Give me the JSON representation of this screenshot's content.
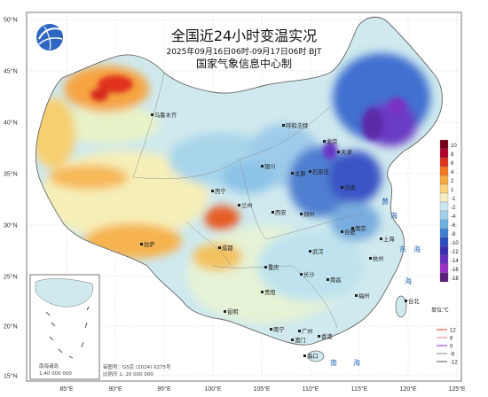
{
  "title": "全国近24小时变温实况",
  "period": "2025年09月16日06时-09月17日06时 BJT",
  "org": "国家气象信息中心制",
  "lat_labels": [
    "50°N",
    "45°N",
    "40°N",
    "35°N",
    "30°N",
    "25°N",
    "20°N",
    "15°N"
  ],
  "lon_labels": [
    "85°E",
    "90°E",
    "95°E",
    "100°E",
    "105°E",
    "110°E",
    "115°E",
    "120°E",
    "125°E"
  ],
  "cities": [
    {
      "name": "乌鲁木齐",
      "color": "#222"
    },
    {
      "name": "呼和浩特",
      "color": "#222"
    },
    {
      "name": "北京",
      "color": "#222"
    },
    {
      "name": "天津",
      "color": "#222"
    },
    {
      "name": "银川",
      "color": "#222"
    },
    {
      "name": "太原",
      "color": "#222"
    },
    {
      "name": "石家庄",
      "color": "#222"
    },
    {
      "name": "济南",
      "color": "#222"
    },
    {
      "name": "西宁",
      "color": "#222"
    },
    {
      "name": "兰州",
      "color": "#222"
    },
    {
      "name": "西安",
      "color": "#222"
    },
    {
      "name": "郑州",
      "color": "#222"
    },
    {
      "name": "拉萨",
      "color": "#222"
    },
    {
      "name": "成都",
      "color": "#222"
    },
    {
      "name": "合肥",
      "color": "#222"
    },
    {
      "name": "南京",
      "color": "#222"
    },
    {
      "name": "上海",
      "color": "#222"
    },
    {
      "name": "武汉",
      "color": "#222"
    },
    {
      "name": "杭州",
      "color": "#222"
    },
    {
      "name": "重庆",
      "color": "#222"
    },
    {
      "name": "长沙",
      "color": "#222"
    },
    {
      "name": "南昌",
      "color": "#222"
    },
    {
      "name": "贵阳",
      "color": "#222"
    },
    {
      "name": "福州",
      "color": "#222"
    },
    {
      "name": "昆明",
      "color": "#222"
    },
    {
      "name": "南宁",
      "color": "#222"
    },
    {
      "name": "广州",
      "color": "#222"
    },
    {
      "name": "香港",
      "color": "#222"
    },
    {
      "name": "澳门",
      "color": "#222"
    },
    {
      "name": "海口",
      "color": "#222"
    },
    {
      "name": "台北",
      "color": "#222"
    }
  ],
  "seas": [
    "黄",
    "海",
    "东",
    "海",
    "南",
    "海",
    "海"
  ],
  "legend": {
    "values": [
      "10",
      "8",
      "6",
      "4",
      "2",
      "1",
      "-1",
      "-2",
      "-4",
      "-6",
      "-8",
      "-10",
      "-12",
      "-14",
      "-16",
      "-18"
    ],
    "colors": [
      "#7a0019",
      "#b2002b",
      "#e0301e",
      "#f5761f",
      "#f9a742",
      "#fbd27a",
      "#f5f0c0",
      "#c8e7f0",
      "#9fd2ea",
      "#6eb1e0",
      "#3f80d2",
      "#2b4fc1",
      "#3a2fb0",
      "#6a2fc0",
      "#9a30c4",
      "#5a1f7a"
    ],
    "unit": "单位:℃"
  },
  "contour_legend": [
    {
      "value": "12",
      "color": "#e0401e"
    },
    {
      "value": "6",
      "color": "#f07a8a"
    },
    {
      "value": "0",
      "color": "#8a2be2"
    },
    {
      "value": "-6",
      "color": "#888888"
    },
    {
      "value": "-12",
      "color": "#555555"
    }
  ],
  "inset": {
    "label": "南海诸岛",
    "scale": "1:40 000 000"
  },
  "map_meta": {
    "approval": "审图号：GS京 (2024) 0275号",
    "scale": "比例尺 1: 20 000 000"
  }
}
